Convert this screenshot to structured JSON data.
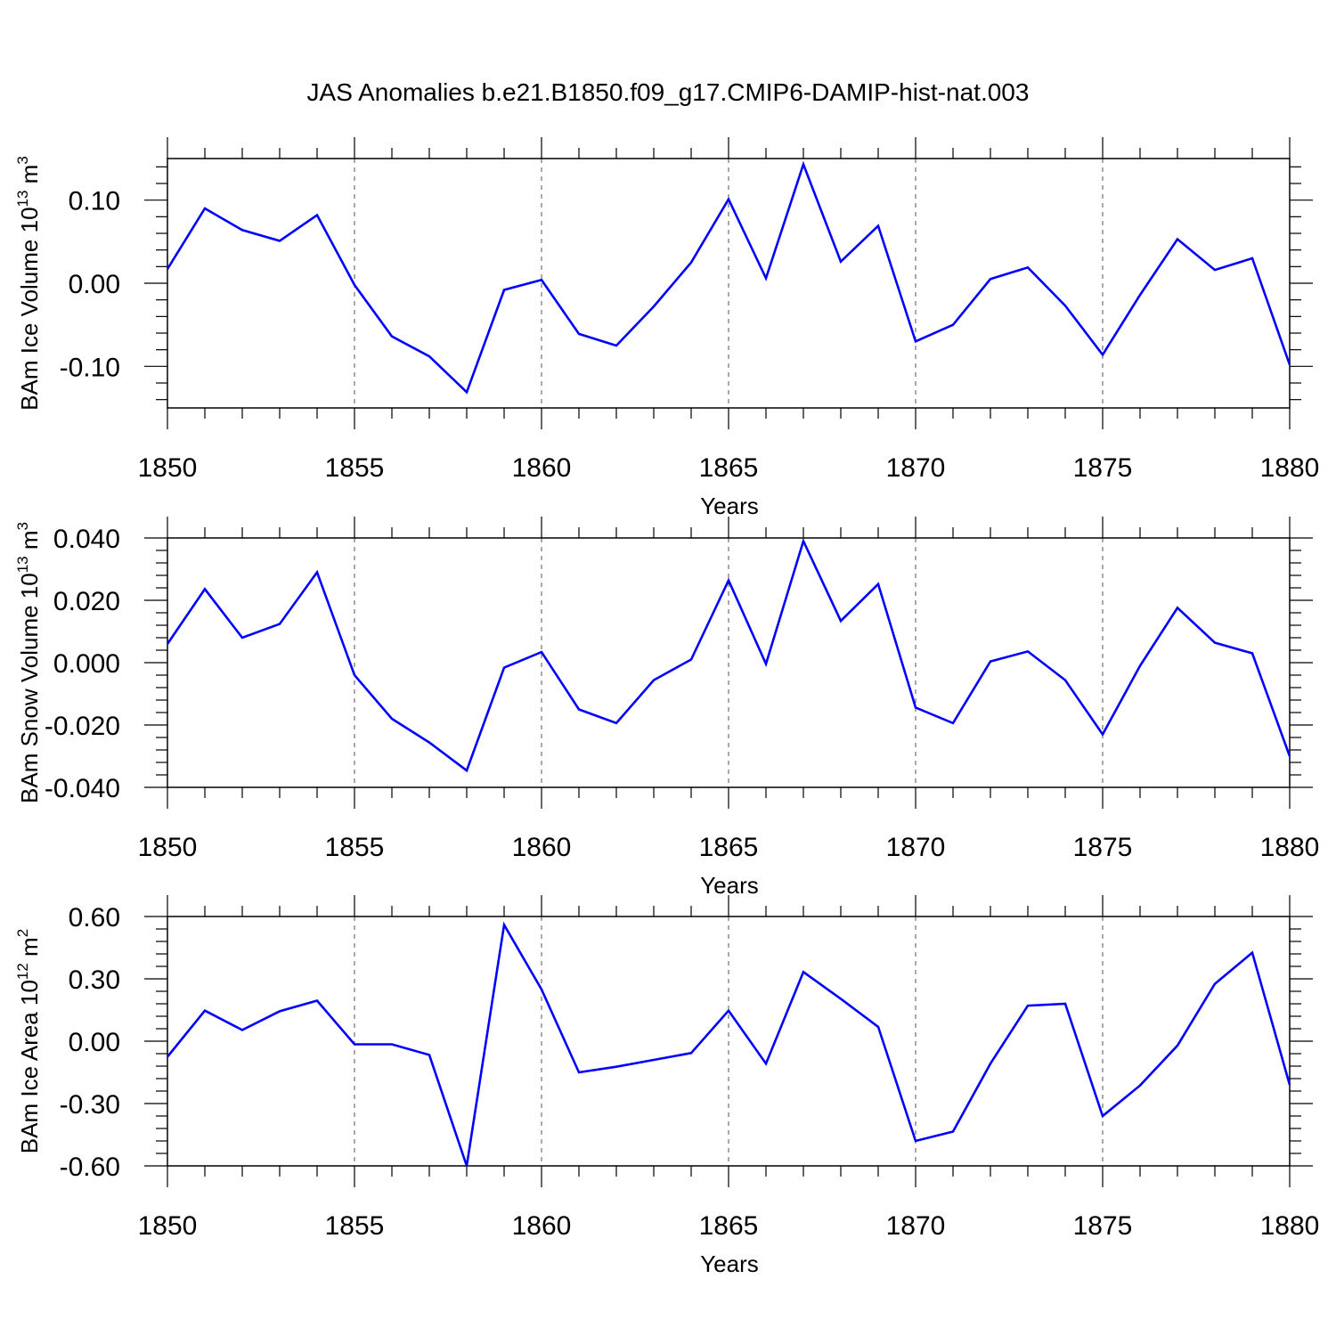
{
  "title": "JAS Anomalies b.e21.B1850.f09_g17.CMIP6-DAMIP-hist-nat.003",
  "chart_data": [
    {
      "type": "line",
      "title": "JAS Anomalies b.e21.B1850.f09_g17.CMIP6-DAMIP-hist-nat.003",
      "xlabel": "Years",
      "ylabel": "BAm Ice Volume 10",
      "ylabel_exp": "13",
      "ylabel_unit": " m",
      "ylabel_unit_exp": "3",
      "xlim": [
        1850,
        1880
      ],
      "ylim": [
        -0.15,
        0.15
      ],
      "xticks": [
        "1850",
        "1855",
        "1860",
        "1865",
        "1870",
        "1875",
        "1880"
      ],
      "yticks": [
        {
          "v": 0.1,
          "label": "0.10"
        },
        {
          "v": 0.0,
          "label": "0.00"
        },
        {
          "v": -0.1,
          "label": "-0.10"
        }
      ],
      "grid": "dashed vertical at major x ticks",
      "color": "#0000ff",
      "x": [
        1850,
        1851,
        1852,
        1853,
        1854,
        1855,
        1856,
        1857,
        1858,
        1859,
        1860,
        1861,
        1862,
        1863,
        1864,
        1865,
        1866,
        1867,
        1868,
        1869,
        1870,
        1871,
        1872,
        1873,
        1874,
        1875,
        1876,
        1877,
        1878,
        1879,
        1880
      ],
      "y": [
        0.017,
        0.09,
        0.064,
        0.051,
        0.082,
        -0.002,
        -0.064,
        -0.088,
        -0.131,
        -0.008,
        0.004,
        -0.061,
        -0.075,
        -0.028,
        0.025,
        0.101,
        0.006,
        0.143,
        0.026,
        0.069,
        -0.07,
        -0.05,
        0.005,
        0.019,
        -0.027,
        -0.086,
        -0.014,
        0.053,
        0.016,
        0.03,
        -0.098
      ]
    },
    {
      "type": "line",
      "xlabel": "Years",
      "ylabel": "BAm Snow Volume 10",
      "ylabel_exp": "13",
      "ylabel_unit": " m",
      "ylabel_unit_exp": "3",
      "xlim": [
        1850,
        1880
      ],
      "ylim": [
        -0.04,
        0.04
      ],
      "xticks": [
        "1850",
        "1855",
        "1860",
        "1865",
        "1870",
        "1875",
        "1880"
      ],
      "yticks": [
        {
          "v": 0.04,
          "label": "0.040"
        },
        {
          "v": 0.02,
          "label": "0.020"
        },
        {
          "v": 0.0,
          "label": "0.000"
        },
        {
          "v": -0.02,
          "label": "-0.020"
        },
        {
          "v": -0.04,
          "label": "-0.040"
        }
      ],
      "grid": "dashed vertical at major x ticks",
      "color": "#0000ff",
      "x": [
        1850,
        1851,
        1852,
        1853,
        1854,
        1855,
        1856,
        1857,
        1858,
        1859,
        1860,
        1861,
        1862,
        1863,
        1864,
        1865,
        1866,
        1867,
        1868,
        1869,
        1870,
        1871,
        1872,
        1873,
        1874,
        1875,
        1876,
        1877,
        1878,
        1879,
        1880
      ],
      "y": [
        0.006,
        0.0236,
        0.008,
        0.0124,
        0.029,
        -0.004,
        -0.018,
        -0.0256,
        -0.0346,
        -0.0016,
        0.0034,
        -0.015,
        -0.0194,
        -0.0056,
        0.001,
        0.0264,
        -0.0004,
        0.039,
        0.0134,
        0.0252,
        -0.0144,
        -0.0194,
        0.0004,
        0.0036,
        -0.0056,
        -0.023,
        -0.001,
        0.0176,
        0.0064,
        0.003,
        -0.03
      ]
    },
    {
      "type": "line",
      "xlabel": "Years",
      "ylabel": "BAm Ice Area 10",
      "ylabel_exp": "12",
      "ylabel_unit": " m",
      "ylabel_unit_exp": "2",
      "xlim": [
        1850,
        1880
      ],
      "ylim": [
        -0.6,
        0.6
      ],
      "xticks": [
        "1850",
        "1855",
        "1860",
        "1865",
        "1870",
        "1875",
        "1880"
      ],
      "yticks": [
        {
          "v": 0.6,
          "label": "0.60"
        },
        {
          "v": 0.3,
          "label": "0.30"
        },
        {
          "v": 0.0,
          "label": "0.00"
        },
        {
          "v": -0.3,
          "label": "-0.30"
        },
        {
          "v": -0.6,
          "label": "-0.60"
        }
      ],
      "grid": "dashed vertical at major x ticks",
      "color": "#0000ff",
      "x": [
        1850,
        1851,
        1852,
        1853,
        1854,
        1855,
        1856,
        1857,
        1858,
        1859,
        1860,
        1861,
        1862,
        1863,
        1864,
        1865,
        1866,
        1867,
        1868,
        1869,
        1870,
        1871,
        1872,
        1873,
        1874,
        1875,
        1876,
        1877,
        1878,
        1879,
        1880
      ],
      "y": [
        -0.075,
        0.147,
        0.054,
        0.144,
        0.195,
        -0.015,
        -0.015,
        -0.066,
        -0.6,
        0.56,
        0.249,
        -0.15,
        -0.123,
        -0.09,
        -0.057,
        0.147,
        -0.108,
        0.333,
        0.204,
        0.069,
        -0.48,
        -0.435,
        -0.108,
        0.171,
        0.18,
        -0.36,
        -0.213,
        -0.021,
        0.276,
        0.426,
        -0.21
      ]
    }
  ]
}
